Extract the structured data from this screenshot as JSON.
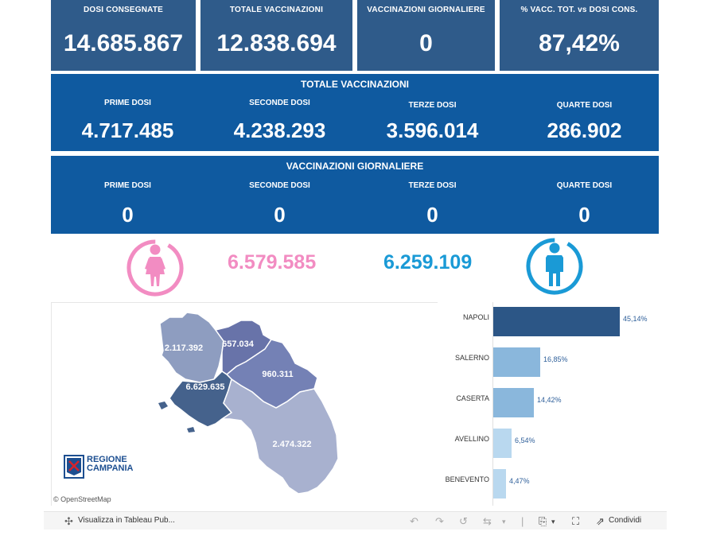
{
  "kpis": [
    {
      "label": "DOSI CONSEGNATE",
      "value": "14.685.867"
    },
    {
      "label": "TOTALE VACCINAZIONI",
      "value": "12.838.694"
    },
    {
      "label": "VACCINAZIONI GIORNALIERE",
      "value": "0"
    },
    {
      "label": "% VACC. TOT. vs DOSI CONS.",
      "value": "87,42%"
    }
  ],
  "totale": {
    "title": "TOTALE VACCINAZIONI",
    "cols": [
      {
        "label": "PRIME DOSI",
        "value": "4.717.485"
      },
      {
        "label": "SECONDE DOSI",
        "value": "4.238.293"
      },
      {
        "label": "TERZE DOSI",
        "value": "3.596.014"
      },
      {
        "label": "QUARTE DOSI",
        "value": "286.902"
      }
    ]
  },
  "giornaliere": {
    "title": "VACCINAZIONI GIORNALIERE",
    "cols": [
      {
        "label": "PRIME DOSI",
        "value": "0"
      },
      {
        "label": "SECONDE DOSI",
        "value": "0"
      },
      {
        "label": "TERZE DOSI",
        "value": "0"
      },
      {
        "label": "QUARTE DOSI",
        "value": "0"
      }
    ]
  },
  "gender": {
    "female_value": "6.579.585",
    "male_value": "6.259.109",
    "female_color": "#f28cc2",
    "male_color": "#1a9ad6"
  },
  "map": {
    "labels": {
      "caserta": "2.117.392",
      "benevento": "657.034",
      "avellino": "960.311",
      "napoli": "6.629.635",
      "salerno": "2.474.322"
    },
    "logo_line1": "REGIONE",
    "logo_line2": "CAMPANIA",
    "attribution": "© OpenStreetMap"
  },
  "provinces": {
    "rows": [
      {
        "name": "NAPOLI",
        "pct": 45.14,
        "pct_label": "45,14%",
        "color": "#2c5686"
      },
      {
        "name": "SALERNO",
        "pct": 16.85,
        "pct_label": "16,85%",
        "color": "#8ab7dc"
      },
      {
        "name": "CASERTA",
        "pct": 14.42,
        "pct_label": "14,42%",
        "color": "#8ab7dc"
      },
      {
        "name": "AVELLINO",
        "pct": 6.54,
        "pct_label": "6,54%",
        "color": "#b9d8ef"
      },
      {
        "name": "BENEVENTO",
        "pct": 4.47,
        "pct_label": "4,47%",
        "color": "#b9d8ef"
      }
    ]
  },
  "toolbar": {
    "view_label": "Visualizza in Tableau Pub...",
    "share_label": "Condividi"
  }
}
